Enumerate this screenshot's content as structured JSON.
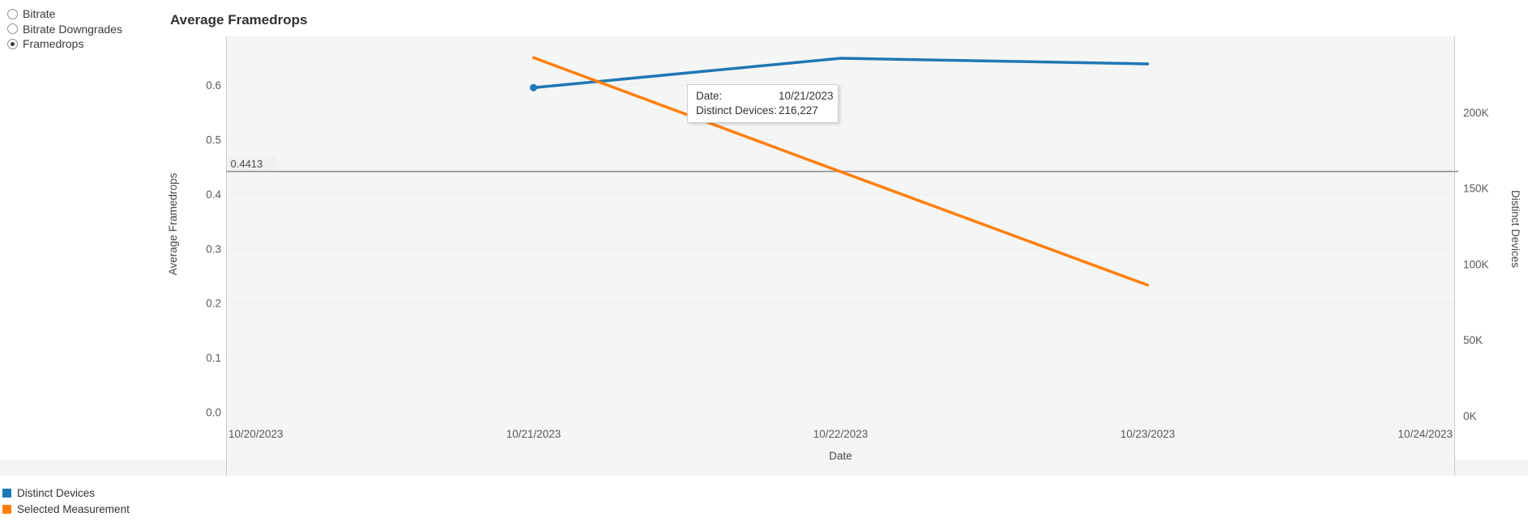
{
  "controls": {
    "options": [
      {
        "label": "Bitrate",
        "selected": false
      },
      {
        "label": "Bitrate Downgrades",
        "selected": false
      },
      {
        "label": "Framedrops",
        "selected": true
      }
    ]
  },
  "tooltip": {
    "rows": [
      {
        "label": "Date:",
        "value": "10/21/2023"
      },
      {
        "label": "Distinct Devices:",
        "value": "216,227"
      }
    ]
  },
  "chart_data": {
    "type": "line",
    "title": "Average Framedrops",
    "xlabel": "Date",
    "x_ticks": [
      "10/20/2023",
      "10/21/2023",
      "10/22/2023",
      "10/23/2023",
      "10/24/2023"
    ],
    "left_axis": {
      "label": "Average Framedrops",
      "ticks": [
        "0.0",
        "0.1",
        "0.2",
        "0.3",
        "0.4",
        "0.5",
        "0.6"
      ],
      "tick_values": [
        0,
        0.1,
        0.2,
        0.3,
        0.4,
        0.5,
        0.6
      ],
      "range": [
        0,
        0.69
      ]
    },
    "right_axis": {
      "label": "Distinct Devices",
      "ticks": [
        "0K",
        "50K",
        "100K",
        "150K",
        "200K"
      ],
      "tick_values": [
        0,
        50000,
        100000,
        150000,
        200000
      ],
      "range": [
        0,
        250000
      ]
    },
    "reference_line": {
      "axis": "left",
      "value": 0.4413,
      "label": "0.4413"
    },
    "series": [
      {
        "name": "Distinct Devices",
        "color": "#1f77b4",
        "axis": "right",
        "x": [
          "10/21/2023",
          "10/22/2023",
          "10/23/2023"
        ],
        "values": [
          216227,
          235600,
          231900
        ],
        "hover_marker_x": "10/21/2023"
      },
      {
        "name": "Selected Measurement",
        "color": "#ff7f0e",
        "axis": "left",
        "x": [
          "10/21/2023",
          "10/22/2023",
          "10/23/2023"
        ],
        "values": [
          0.65,
          0.441,
          0.233
        ]
      }
    ],
    "legend_position": "bottom-left",
    "grid": "horizontal-faint"
  },
  "colors": {
    "plot_bg": "#f4f5f5",
    "grid_line": "#ebedee",
    "axis_line": "#c9c9c9",
    "reference_line": "#a3a3a3",
    "reference_label_bg": "#efefef"
  }
}
